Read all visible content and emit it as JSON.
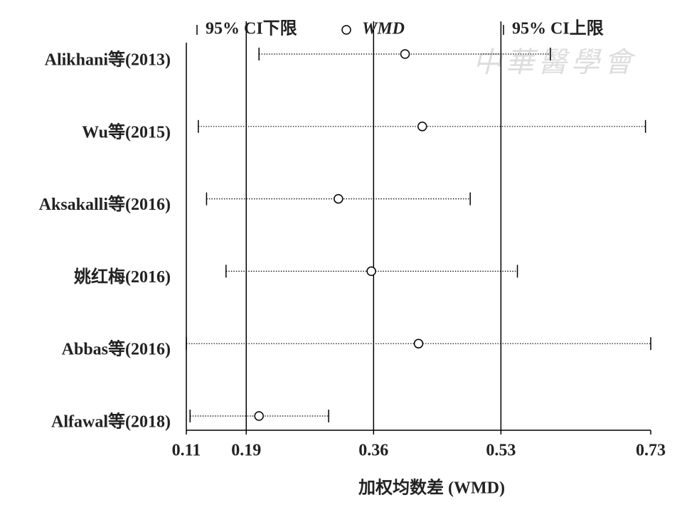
{
  "chart_data": {
    "type": "forest",
    "categories": [
      "Alikhani等(2013)",
      "Wu等(2015)",
      "Aksakalli等(2016)",
      "姚红梅(2016)",
      "Abbas等(2016)",
      "Alfawal等(2018)"
    ],
    "series": [
      {
        "name": "95% CI下限",
        "color": "#000000",
        "values": [
          0.207,
          0.126,
          0.137,
          0.163,
          0.11,
          0.115
        ]
      },
      {
        "name": "WMD",
        "color": "#000000",
        "values": [
          0.402,
          0.425,
          0.313,
          0.357,
          0.42,
          0.207
        ]
      },
      {
        "name": "95% CI上限",
        "color": "#000000",
        "values": [
          0.596,
          0.723,
          0.489,
          0.552,
          0.73,
          0.3
        ]
      }
    ],
    "xlim": [
      0.11,
      0.73
    ],
    "xticks": [
      0.11,
      0.19,
      0.36,
      0.53,
      0.73
    ],
    "xlabel": "加权均数差 (WMD)",
    "grid": true,
    "watermark": "中華醫學會"
  }
}
